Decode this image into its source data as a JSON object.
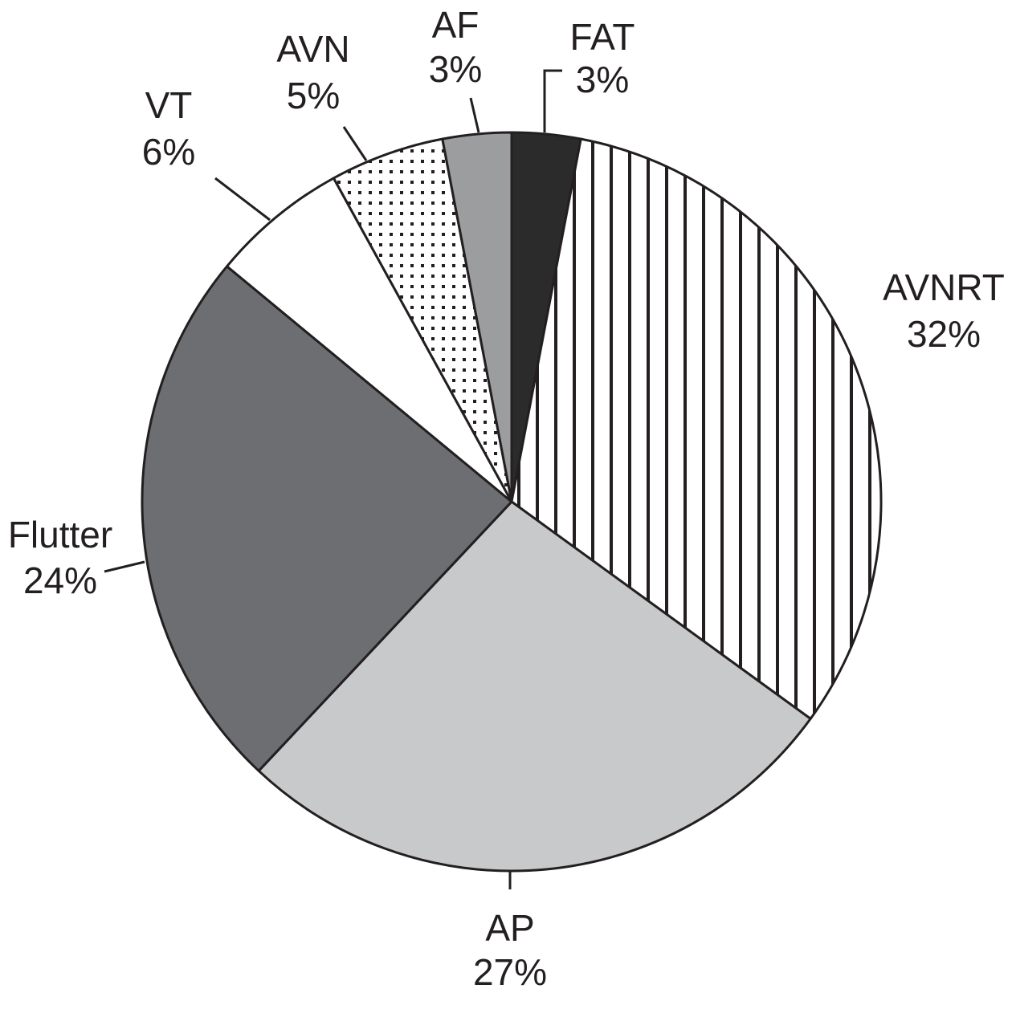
{
  "chart_data": {
    "type": "pie",
    "categories": [
      "FAT",
      "AVNRT",
      "AP",
      "Flutter",
      "VT",
      "AVN",
      "AF"
    ],
    "values": [
      3,
      32,
      27,
      24,
      6,
      5,
      3
    ],
    "value_labels": [
      "3%",
      "32%",
      "27%",
      "24%",
      "6%",
      "5%",
      "3%"
    ],
    "colors": [
      "#2b2b2b",
      "#ffffff",
      "#c8c9cb",
      "#6d6e71",
      "#ffffff",
      "#ffffff",
      "#9c9d9f"
    ],
    "patterns": [
      "solid",
      "vertical-stripes",
      "solid",
      "solid",
      "solid",
      "dots",
      "solid"
    ],
    "start_angle": 0,
    "direction": "clockwise"
  }
}
